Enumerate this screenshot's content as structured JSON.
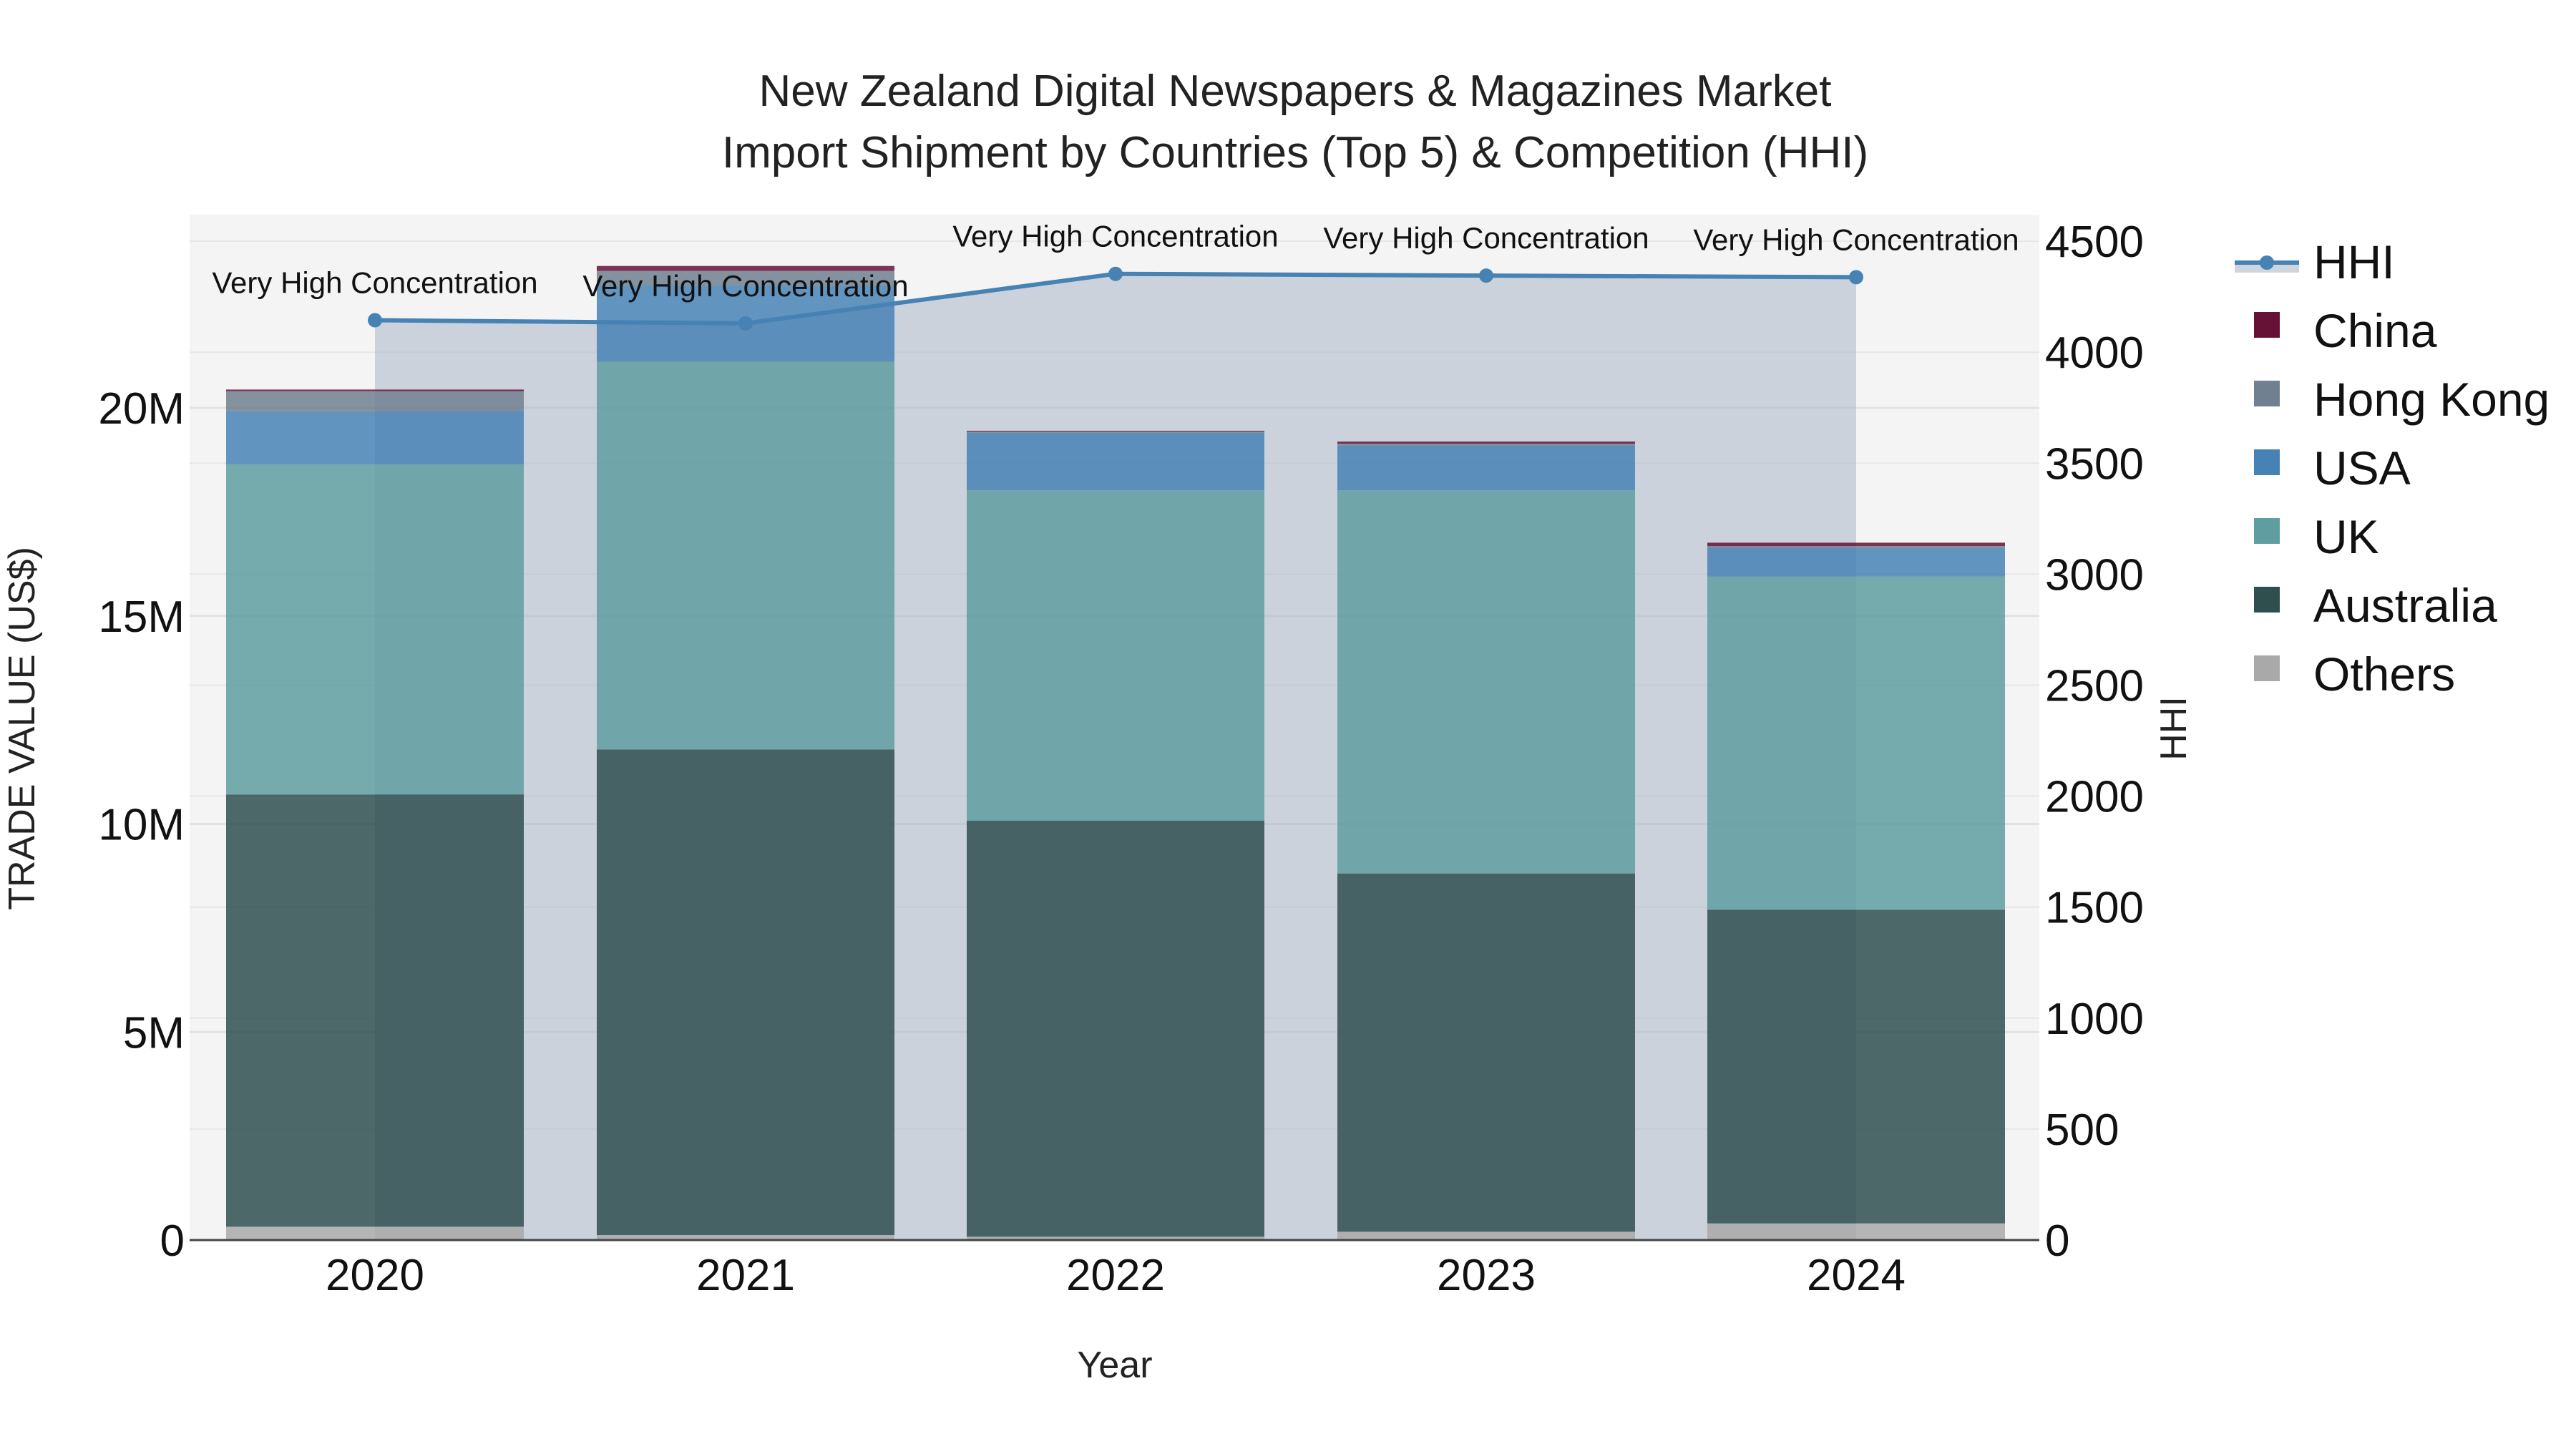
{
  "title": {
    "line1": "New Zealand Digital Newspapers & Magazines Market",
    "line2": "Import Shipment by Countries (Top 5) & Competition (HHI)"
  },
  "axes": {
    "x_title": "Year",
    "y_left_title": "TRADE VALUE (US$)",
    "y_right_title": "HHI",
    "y_left_ticks": [
      "0",
      "5M",
      "10M",
      "15M",
      "20M"
    ],
    "y_right_ticks": [
      "0",
      "500",
      "1000",
      "1500",
      "2000",
      "2500",
      "3000",
      "3500",
      "4000",
      "4500"
    ],
    "x_ticks": [
      "2020",
      "2021",
      "2022",
      "2023",
      "2024"
    ]
  },
  "legend": [
    {
      "name": "HHI",
      "type": "line",
      "color": "#4682B4"
    },
    {
      "name": "China",
      "type": "bar",
      "color": "#661236"
    },
    {
      "name": "Hong Kong",
      "type": "bar",
      "color": "#708090"
    },
    {
      "name": "USA",
      "type": "bar",
      "color": "#4682B4"
    },
    {
      "name": "UK",
      "type": "bar",
      "color": "#5F9EA0"
    },
    {
      "name": "Australia",
      "type": "bar",
      "color": "#2F4F4F"
    },
    {
      "name": "Others",
      "type": "bar",
      "color": "#A9A9A9"
    }
  ],
  "annotations": [
    "Very High Concentration",
    "Very High Concentration",
    "Very High Concentration",
    "Very High Concentration",
    "Very High Concentration"
  ],
  "chart_data": {
    "type": "bar",
    "subtype": "stacked bar + line (secondary axis)",
    "title": "New Zealand Digital Newspapers & Magazines Market Import Shipment by Countries (Top 5) & Competition (HHI)",
    "xlabel": "Year",
    "ylabel": "TRADE VALUE (US$)",
    "y2label": "HHI",
    "categories": [
      "2020",
      "2021",
      "2022",
      "2023",
      "2024"
    ],
    "ylim": [
      0,
      24500000
    ],
    "y2lim": [
      0,
      4600
    ],
    "grid": true,
    "legend_position": "right",
    "series": [
      {
        "name": "Others",
        "axis": "left",
        "color": "#A9A9A9",
        "values": [
          320000,
          120000,
          80000,
          200000,
          400000
        ]
      },
      {
        "name": "Australia",
        "axis": "left",
        "color": "#2F4F4F",
        "values": [
          10390000,
          11670000,
          10000000,
          8610000,
          7540000
        ]
      },
      {
        "name": "UK",
        "axis": "left",
        "color": "#5F9EA0",
        "values": [
          7940000,
          9320000,
          7940000,
          9210000,
          8010000
        ]
      },
      {
        "name": "USA",
        "axis": "left",
        "color": "#4682B4",
        "values": [
          1270000,
          1830000,
          1380000,
          1070000,
          680000
        ]
      },
      {
        "name": "Hong Kong",
        "axis": "left",
        "color": "#708090",
        "values": [
          480000,
          350000,
          30000,
          50000,
          50000
        ]
      },
      {
        "name": "China",
        "axis": "left",
        "color": "#661236",
        "values": [
          40000,
          120000,
          20000,
          50000,
          80000
        ]
      },
      {
        "name": "HHI",
        "axis": "right",
        "type": "line",
        "fill": "tozeroy",
        "color": "#4682B4",
        "values": [
          4144,
          4130,
          4353,
          4345,
          4338
        ]
      }
    ],
    "annotations": [
      {
        "x": "2020",
        "text": "Very High Concentration"
      },
      {
        "x": "2021",
        "text": "Very High Concentration"
      },
      {
        "x": "2022",
        "text": "Very High Concentration"
      },
      {
        "x": "2023",
        "text": "Very High Concentration"
      },
      {
        "x": "2024",
        "text": "Very High Concentration"
      }
    ]
  }
}
